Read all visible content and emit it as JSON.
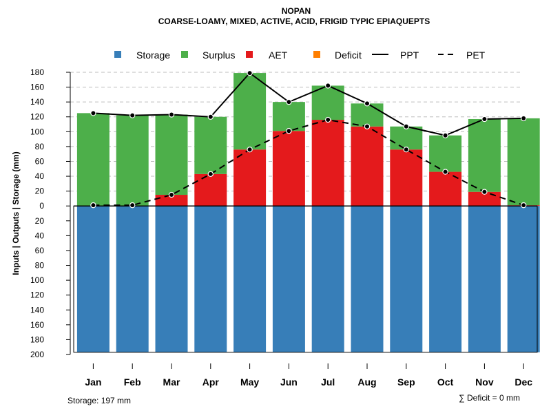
{
  "chart_data": {
    "type": "bar",
    "title": "NOPAN",
    "subtitle": "COARSE-LOAMY, MIXED, ACTIVE, ACID, FRIGID TYPIC EPIAQUEPTS",
    "ylabel": "Inputs | Outputs | Storage    (mm)",
    "categories": [
      "Jan",
      "Feb",
      "Mar",
      "Apr",
      "May",
      "Jun",
      "Jul",
      "Aug",
      "Sep",
      "Oct",
      "Nov",
      "Dec"
    ],
    "ylim": [
      -200,
      180
    ],
    "y_ticks": [
      180,
      160,
      140,
      120,
      100,
      80,
      60,
      40,
      20,
      0,
      -20,
      -40,
      -60,
      -80,
      -100,
      -120,
      -140,
      -160,
      -180,
      -200
    ],
    "y_tick_labels": [
      "180",
      "160",
      "140",
      "120",
      "100",
      "80",
      "60",
      "40",
      "20",
      "0",
      "20",
      "40",
      "60",
      "80",
      "100",
      "120",
      "140",
      "160",
      "180",
      "200"
    ],
    "series": [
      {
        "name": "Storage",
        "color": "#377EB8",
        "values": [
          -197,
          -197,
          -197,
          -197,
          -197,
          -197,
          -197,
          -197,
          -197,
          -197,
          -197,
          -197
        ]
      },
      {
        "name": "AET",
        "color": "#E41A1C",
        "values": [
          0,
          0,
          15,
          43,
          76,
          101,
          116,
          107,
          76,
          46,
          19,
          1
        ]
      },
      {
        "name": "Surplus",
        "color": "#4DAF4A",
        "values": [
          125,
          122,
          108,
          77,
          103,
          39,
          46,
          31,
          31,
          49,
          98,
          117
        ]
      },
      {
        "name": "Deficit",
        "color": "#FF7F00",
        "values": [
          0,
          0,
          0,
          0,
          0,
          0,
          0,
          0,
          0,
          0,
          0,
          0
        ]
      },
      {
        "name": "PPT",
        "color": "#000000",
        "line": "solid",
        "values": [
          125,
          122,
          123,
          120,
          179,
          140,
          162,
          138,
          107,
          95,
          117,
          118
        ]
      },
      {
        "name": "PET",
        "color": "#000000",
        "line": "dashed",
        "values": [
          1,
          1,
          15,
          43,
          76,
          101,
          116,
          107,
          76,
          46,
          19,
          1
        ]
      }
    ],
    "legend": {
      "position": "top",
      "entries": [
        "Storage",
        "Surplus",
        "AET",
        "Deficit",
        "PPT",
        "PET"
      ]
    },
    "grid": true,
    "footer": {
      "storage": "Storage: 197 mm",
      "deficit": "∑ Deficit = 0 mm"
    }
  }
}
